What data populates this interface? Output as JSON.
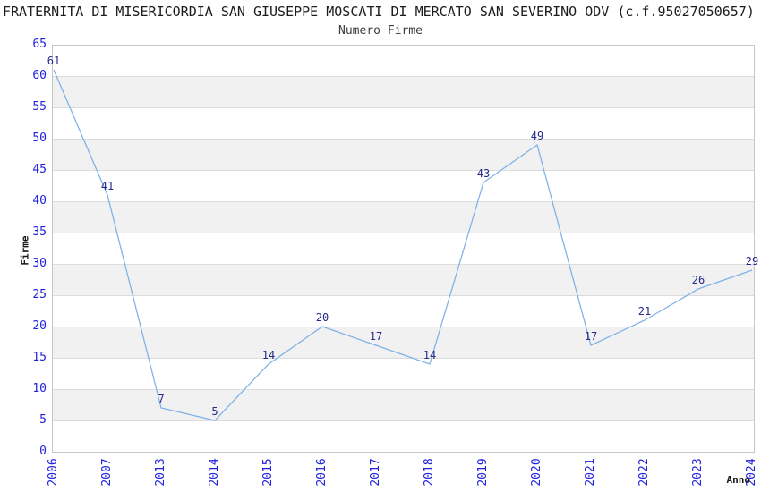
{
  "chart_data": {
    "type": "line",
    "title": "FRATERNITA DI MISERICORDIA SAN GIUSEPPE MOSCATI DI MERCATO SAN SEVERINO ODV (c.f.95027050657)",
    "subtitle": "Numero Firme",
    "xlabel": "Anno",
    "ylabel": "Firme",
    "categories": [
      "2006",
      "2007",
      "2013",
      "2014",
      "2015",
      "2016",
      "2017",
      "2018",
      "2019",
      "2020",
      "2021",
      "2022",
      "2023",
      "2024"
    ],
    "values": [
      61,
      41,
      7,
      5,
      14,
      20,
      17,
      14,
      43,
      49,
      17,
      21,
      26,
      29
    ],
    "ylim": [
      0,
      65
    ],
    "ytick_step": 5,
    "grid": true,
    "legend": "none",
    "colors": {
      "line": "#7eb1e8",
      "band": "#f1f1f1",
      "gridline": "#dcdcdc",
      "plot_border": "#c6c6c6",
      "tick_label": "#2121dd",
      "data_label": "#28288c",
      "title": "#1c1c1c",
      "subtitle": "#3d3d3d",
      "axis_title": "#141414"
    }
  }
}
